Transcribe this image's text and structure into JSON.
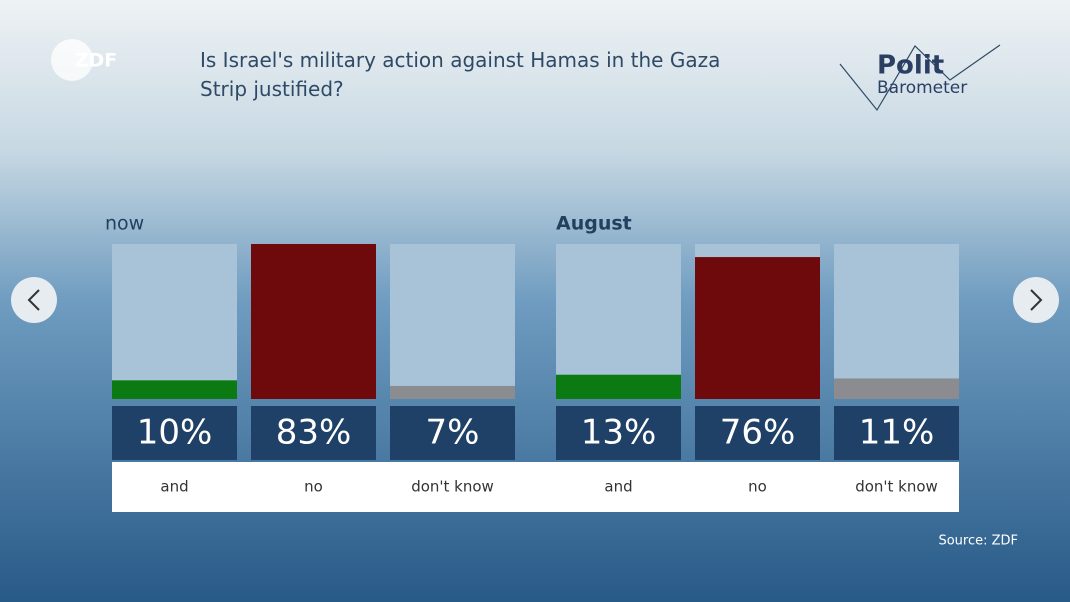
{
  "title": "Is Israel's military action against Hamas in the Gaza Strip justified?",
  "brand": {
    "logo": "ZDF",
    "name_top": "Polit",
    "name_bottom": "Barometer"
  },
  "source": "Source: ZDF",
  "chart_data": [
    {
      "type": "bar",
      "label": "now",
      "categories": [
        "and",
        "no",
        "don't know"
      ],
      "values": [
        10,
        83,
        7
      ],
      "value_labels": [
        "10%",
        "83%",
        "7%"
      ],
      "colors": [
        "#0b7a12",
        "#6e0a0c",
        "#8a8c90"
      ],
      "ylim": [
        0,
        83
      ]
    },
    {
      "type": "bar",
      "label": "August",
      "categories": [
        "and",
        "no",
        "don't know"
      ],
      "values": [
        13,
        76,
        11
      ],
      "value_labels": [
        "13%",
        "76%",
        "11%"
      ],
      "colors": [
        "#0b7a12",
        "#6e0a0c",
        "#8a8c90"
      ],
      "ylim": [
        0,
        83
      ]
    }
  ]
}
